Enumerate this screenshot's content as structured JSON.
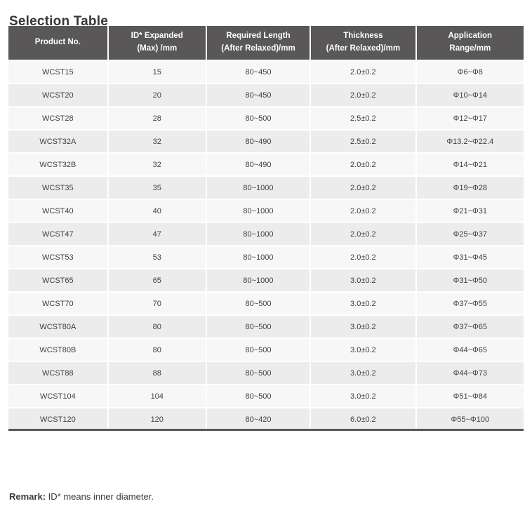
{
  "page": {
    "title": "Selection Table"
  },
  "table": {
    "columns": [
      {
        "line1": "Product No.",
        "line2": ""
      },
      {
        "line1": "ID* Expanded",
        "line2": "(Max) /mm"
      },
      {
        "line1": "Required Length",
        "line2": "(After Relaxed)/mm"
      },
      {
        "line1": "Thickness",
        "line2": "(After Relaxed)/mm"
      },
      {
        "line1": "Application",
        "line2": "Range/mm"
      }
    ],
    "rows": [
      [
        "WCST15",
        "15",
        "80~450",
        "2.0±0.2",
        "Φ6~Φ8"
      ],
      [
        "WCST20",
        "20",
        "80~450",
        "2.0±0.2",
        "Φ10~Φ14"
      ],
      [
        "WCST28",
        "28",
        "80~500",
        "2.5±0.2",
        "Φ12~Φ17"
      ],
      [
        "WCST32A",
        "32",
        "80~490",
        "2.5±0.2",
        "Φ13.2~Φ22.4"
      ],
      [
        "WCST32B",
        "32",
        "80~490",
        "2.0±0.2",
        "Φ14~Φ21"
      ],
      [
        "WCST35",
        "35",
        "80~1000",
        "2.0±0.2",
        "Φ19~Φ28"
      ],
      [
        "WCST40",
        "40",
        "80~1000",
        "2.0±0.2",
        "Φ21~Φ31"
      ],
      [
        "WCST47",
        "47",
        "80~1000",
        "2.0±0.2",
        "Φ25~Φ37"
      ],
      [
        "WCST53",
        "53",
        "80~1000",
        "2.0±0.2",
        "Φ31~Φ45"
      ],
      [
        "WCST65",
        "65",
        "80~1000",
        "3.0±0.2",
        "Φ31~Φ50"
      ],
      [
        "WCST70",
        "70",
        "80~500",
        "3.0±0.2",
        "Φ37~Φ55"
      ],
      [
        "WCST80A",
        "80",
        "80~500",
        "3.0±0.2",
        "Φ37~Φ65"
      ],
      [
        "WCST80B",
        "80",
        "80~500",
        "3.0±0.2",
        "Φ44~Φ65"
      ],
      [
        "WCST88",
        "88",
        "80~500",
        "3.0±0.2",
        "Φ44~Φ73"
      ],
      [
        "WCST104",
        "104",
        "80~500",
        "3.0±0.2",
        "Φ51~Φ84"
      ],
      [
        "WCST120",
        "120",
        "80~420",
        "6.0±0.2",
        "Φ55~Φ100"
      ]
    ]
  },
  "remark": {
    "label": "Remark:",
    "text": " ID* means inner diameter."
  },
  "colors": {
    "header_bg": "#595757",
    "header_text": "#ffffff",
    "row_odd": "#f7f7f7",
    "row_even": "#ececec",
    "cell_text": "#3f3f3f",
    "title_text": "#363636",
    "bottom_border": "#595757"
  }
}
